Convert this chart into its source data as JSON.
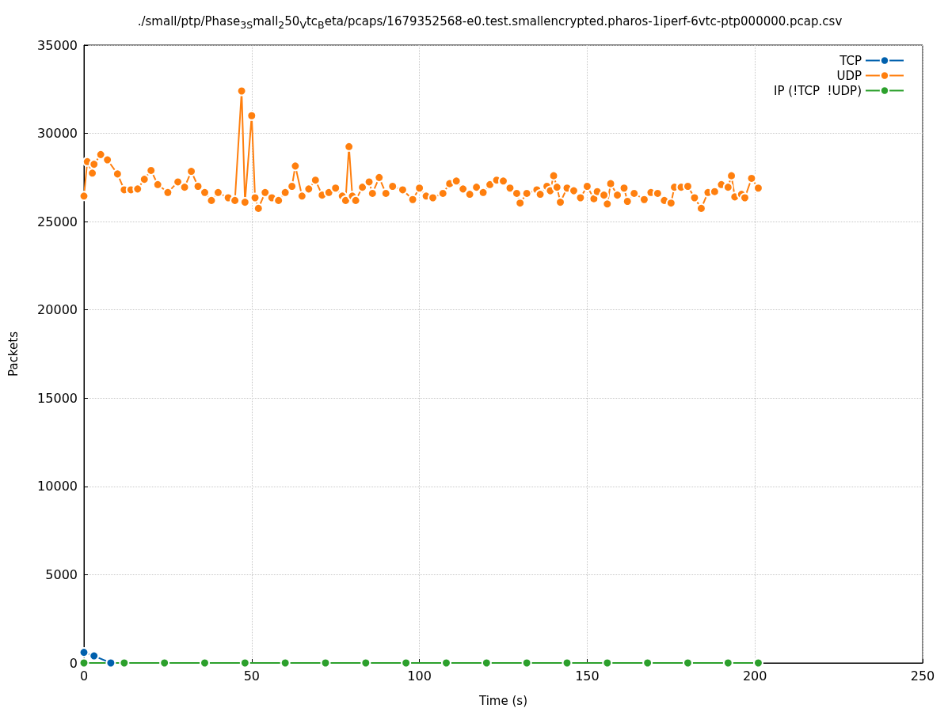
{
  "chart_data": {
    "type": "line",
    "title": "./small/ptp/Phase$_{3S}$mall$_{2}$50$_{V}$tc$_{B}$eta/pcaps/1679352568-e0.test.smallencrypted.pharos-1iperf-6vtc-ptp000000.pcap.csv",
    "xlabel": "Time (s)",
    "ylabel": "Packets",
    "xlim": [
      0,
      250
    ],
    "xticks": [
      0,
      50,
      100,
      150,
      200,
      250
    ],
    "ylim": [
      0,
      35000
    ],
    "yticks": [
      0,
      5000,
      10000,
      15000,
      20000,
      25000,
      30000,
      35000
    ],
    "grid": true,
    "legend": "top right",
    "marker": "circle",
    "line_style": "solid",
    "series": [
      {
        "name": "TCP",
        "color": "#0060ad",
        "x": [
          0,
          3,
          8
        ],
        "values": [
          600,
          400,
          0
        ]
      },
      {
        "name": "UDP",
        "color": "#ff7f0e",
        "x": [
          0,
          1,
          2.5,
          3,
          5,
          7,
          10,
          12,
          14,
          16,
          18,
          20,
          22,
          25,
          28,
          30,
          32,
          34,
          36,
          38,
          40,
          43,
          45,
          47,
          48,
          50,
          51,
          52,
          54,
          56,
          58,
          60,
          62,
          63,
          65,
          67,
          69,
          71,
          73,
          75,
          77,
          78,
          79,
          80,
          81,
          83,
          85,
          86,
          88,
          90,
          92,
          95,
          98,
          100,
          102,
          104,
          107,
          109,
          111,
          113,
          115,
          117,
          119,
          121,
          123,
          125,
          127,
          129,
          130,
          132,
          135,
          136,
          138,
          139,
          140,
          141,
          142,
          144,
          146,
          148,
          150,
          152,
          153,
          155,
          156,
          157,
          159,
          161,
          162,
          164,
          167,
          169,
          171,
          173,
          175,
          176,
          178,
          180,
          182,
          184,
          186,
          188,
          190,
          192,
          193,
          194,
          196,
          197,
          199,
          201
        ],
        "values": [
          26450,
          28400,
          27750,
          28250,
          28800,
          28500,
          27700,
          26800,
          26800,
          26850,
          27400,
          27900,
          27100,
          26650,
          27250,
          26950,
          27850,
          27000,
          26650,
          26200,
          26650,
          26350,
          26200,
          32400,
          26100,
          31000,
          26350,
          25750,
          26650,
          26350,
          26200,
          26650,
          27000,
          28150,
          26450,
          26850,
          27350,
          26500,
          26650,
          26900,
          26450,
          26200,
          29250,
          26450,
          26200,
          26950,
          27250,
          26600,
          27500,
          26600,
          27000,
          26800,
          26250,
          26900,
          26450,
          26350,
          26600,
          27150,
          27300,
          26850,
          26550,
          26950,
          26650,
          27100,
          27350,
          27300,
          26900,
          26600,
          26050,
          26600,
          26800,
          26550,
          27000,
          26750,
          27600,
          26950,
          26100,
          26900,
          26750,
          26350,
          27000,
          26300,
          26700,
          26500,
          26000,
          27150,
          26500,
          26900,
          26150,
          26600,
          26250,
          26650,
          26600,
          26200,
          26050,
          26950,
          26950,
          27000,
          26350,
          25750,
          26650,
          26700,
          27100,
          26950,
          27600,
          26400,
          26550,
          26350,
          27450,
          26900
        ]
      },
      {
        "name": "IP (!TCP  !UDP)",
        "color": "#2ca02c",
        "x": [
          0,
          12,
          24,
          36,
          48,
          60,
          72,
          84,
          96,
          108,
          120,
          132,
          144,
          156,
          168,
          180,
          192,
          201
        ],
        "values": [
          0,
          0,
          0,
          0,
          0,
          0,
          0,
          0,
          0,
          0,
          0,
          0,
          0,
          0,
          0,
          0,
          0,
          0
        ]
      }
    ]
  }
}
